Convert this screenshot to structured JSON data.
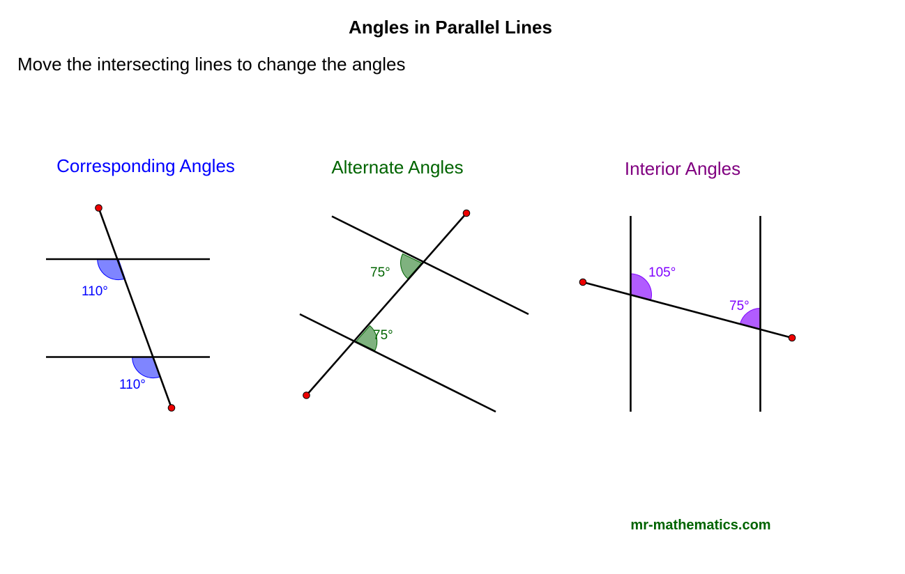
{
  "title": "Angles in Parallel Lines",
  "instruction": "Move the intersecting lines to change the angles",
  "colors": {
    "corresponding": "#0000ff",
    "corresponding_fill": "#7f85ff",
    "alternate": "#006400",
    "alternate_fill": "#7fb27f",
    "interior": "#800080",
    "interior_label": "#7f00ff",
    "interior_fill": "#b15cff",
    "handle": "#ee0000",
    "site": "#006400"
  },
  "panels": {
    "corresponding": {
      "heading": "Corresponding Angles",
      "angles": [
        {
          "label": "110°",
          "value": 110
        },
        {
          "label": "110°",
          "value": 110
        }
      ]
    },
    "alternate": {
      "heading": "Alternate Angles",
      "angles": [
        {
          "label": "75°",
          "value": 75
        },
        {
          "label": "75°",
          "value": 75
        }
      ]
    },
    "interior": {
      "heading": "Interior Angles",
      "angles": [
        {
          "label": "105°",
          "value": 105
        },
        {
          "label": "75°",
          "value": 75
        }
      ]
    }
  },
  "footer": {
    "site": "mr-mathematics.com"
  }
}
